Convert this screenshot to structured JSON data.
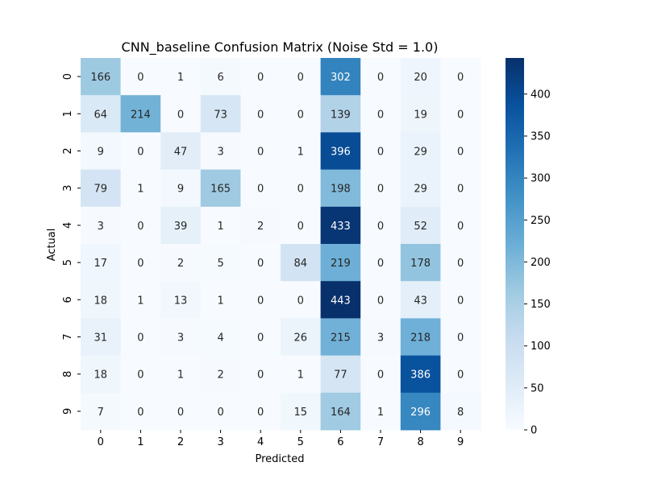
{
  "chart_data": {
    "type": "heatmap",
    "title": "CNN_baseline Confusion Matrix (Noise Std = 1.0)",
    "xlabel": "Predicted",
    "ylabel": "Actual",
    "x_categories": [
      "0",
      "1",
      "2",
      "3",
      "4",
      "5",
      "6",
      "7",
      "8",
      "9"
    ],
    "y_categories": [
      "0",
      "1",
      "2",
      "3",
      "4",
      "5",
      "6",
      "7",
      "8",
      "9"
    ],
    "values": [
      [
        166,
        0,
        1,
        6,
        0,
        0,
        302,
        0,
        20,
        0
      ],
      [
        64,
        214,
        0,
        73,
        0,
        0,
        139,
        0,
        19,
        0
      ],
      [
        9,
        0,
        47,
        3,
        0,
        1,
        396,
        0,
        29,
        0
      ],
      [
        79,
        1,
        9,
        165,
        0,
        0,
        198,
        0,
        29,
        0
      ],
      [
        3,
        0,
        39,
        1,
        2,
        0,
        433,
        0,
        52,
        0
      ],
      [
        17,
        0,
        2,
        5,
        0,
        84,
        219,
        0,
        178,
        0
      ],
      [
        18,
        1,
        13,
        1,
        0,
        0,
        443,
        0,
        43,
        0
      ],
      [
        31,
        0,
        3,
        4,
        0,
        26,
        215,
        3,
        218,
        0
      ],
      [
        18,
        0,
        1,
        2,
        0,
        1,
        77,
        0,
        386,
        0
      ],
      [
        7,
        0,
        0,
        0,
        0,
        15,
        164,
        1,
        296,
        8
      ]
    ],
    "colormap": "Blues",
    "colorbar": {
      "min": 0,
      "max": 443,
      "ticks": [
        0,
        50,
        100,
        150,
        200,
        250,
        300,
        350,
        400
      ]
    }
  }
}
